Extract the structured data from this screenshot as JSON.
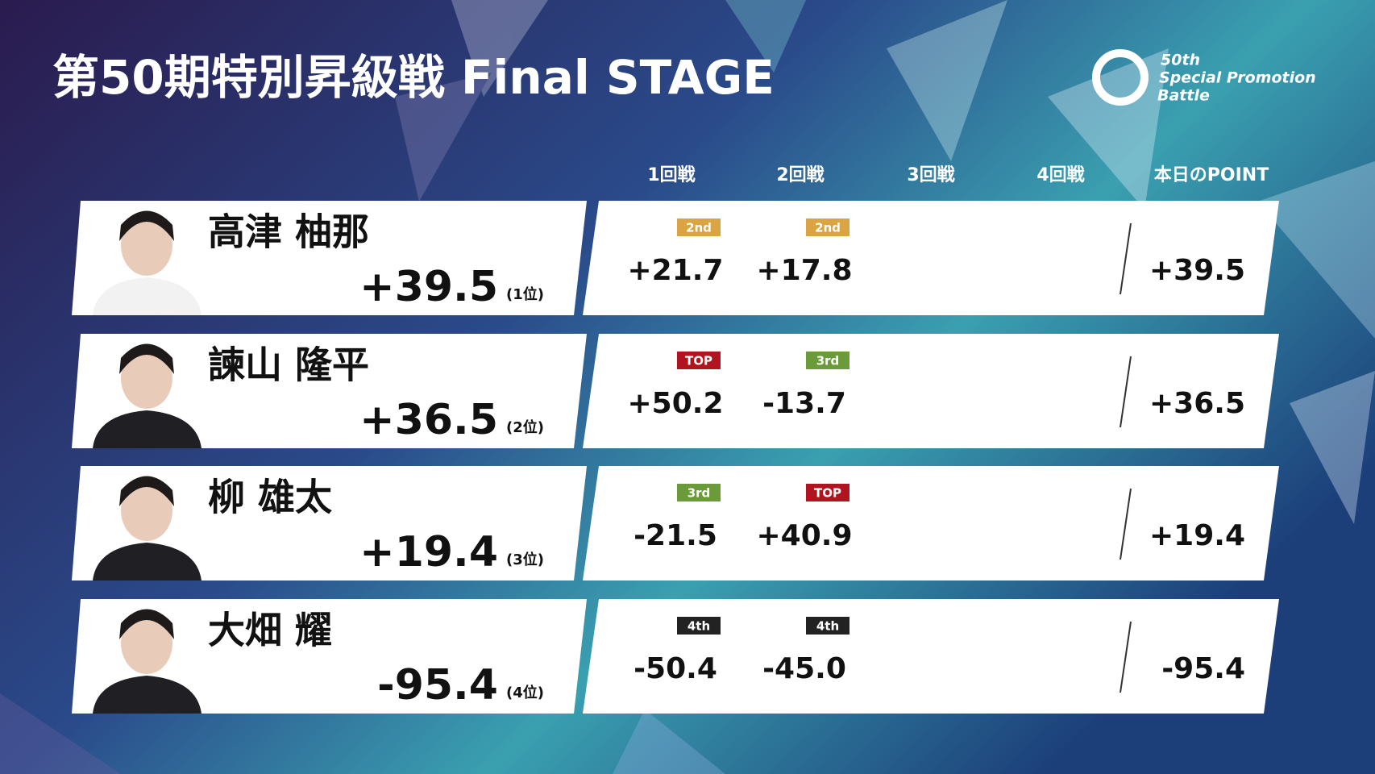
{
  "header": {
    "title": "第50期特別昇級戦 Final STAGE",
    "logo": [
      "50th",
      "Special Promotion",
      "Battle"
    ]
  },
  "columns": [
    "1回戦",
    "2回戦",
    "3回戦",
    "4回戦",
    "本日のPOINT"
  ],
  "players": [
    {
      "name": "高津 柚那",
      "total": "+39.5",
      "rank": "(1位)",
      "games": [
        {
          "badge": "2nd",
          "color": "#d9a441",
          "score": "+21.7"
        },
        {
          "badge": "2nd",
          "color": "#d9a441",
          "score": "+17.8"
        }
      ],
      "point": "+39.5"
    },
    {
      "name": "諫山 隆平",
      "total": "+36.5",
      "rank": "(2位)",
      "games": [
        {
          "badge": "TOP",
          "color": "#b0141f",
          "score": "+50.2"
        },
        {
          "badge": "3rd",
          "color": "#6a9a3a",
          "score": "-13.7"
        }
      ],
      "point": "+36.5"
    },
    {
      "name": "柳 雄太",
      "total": "+19.4",
      "rank": "(3位)",
      "games": [
        {
          "badge": "3rd",
          "color": "#6a9a3a",
          "score": "-21.5"
        },
        {
          "badge": "TOP",
          "color": "#b0141f",
          "score": "+40.9"
        }
      ],
      "point": "+19.4"
    },
    {
      "name": "大畑 耀",
      "total": "-95.4",
      "rank": "(4位)",
      "games": [
        {
          "badge": "4th",
          "color": "#222222",
          "score": "-50.4"
        },
        {
          "badge": "4th",
          "color": "#222222",
          "score": "-45.0"
        }
      ],
      "point": "-95.4"
    }
  ]
}
